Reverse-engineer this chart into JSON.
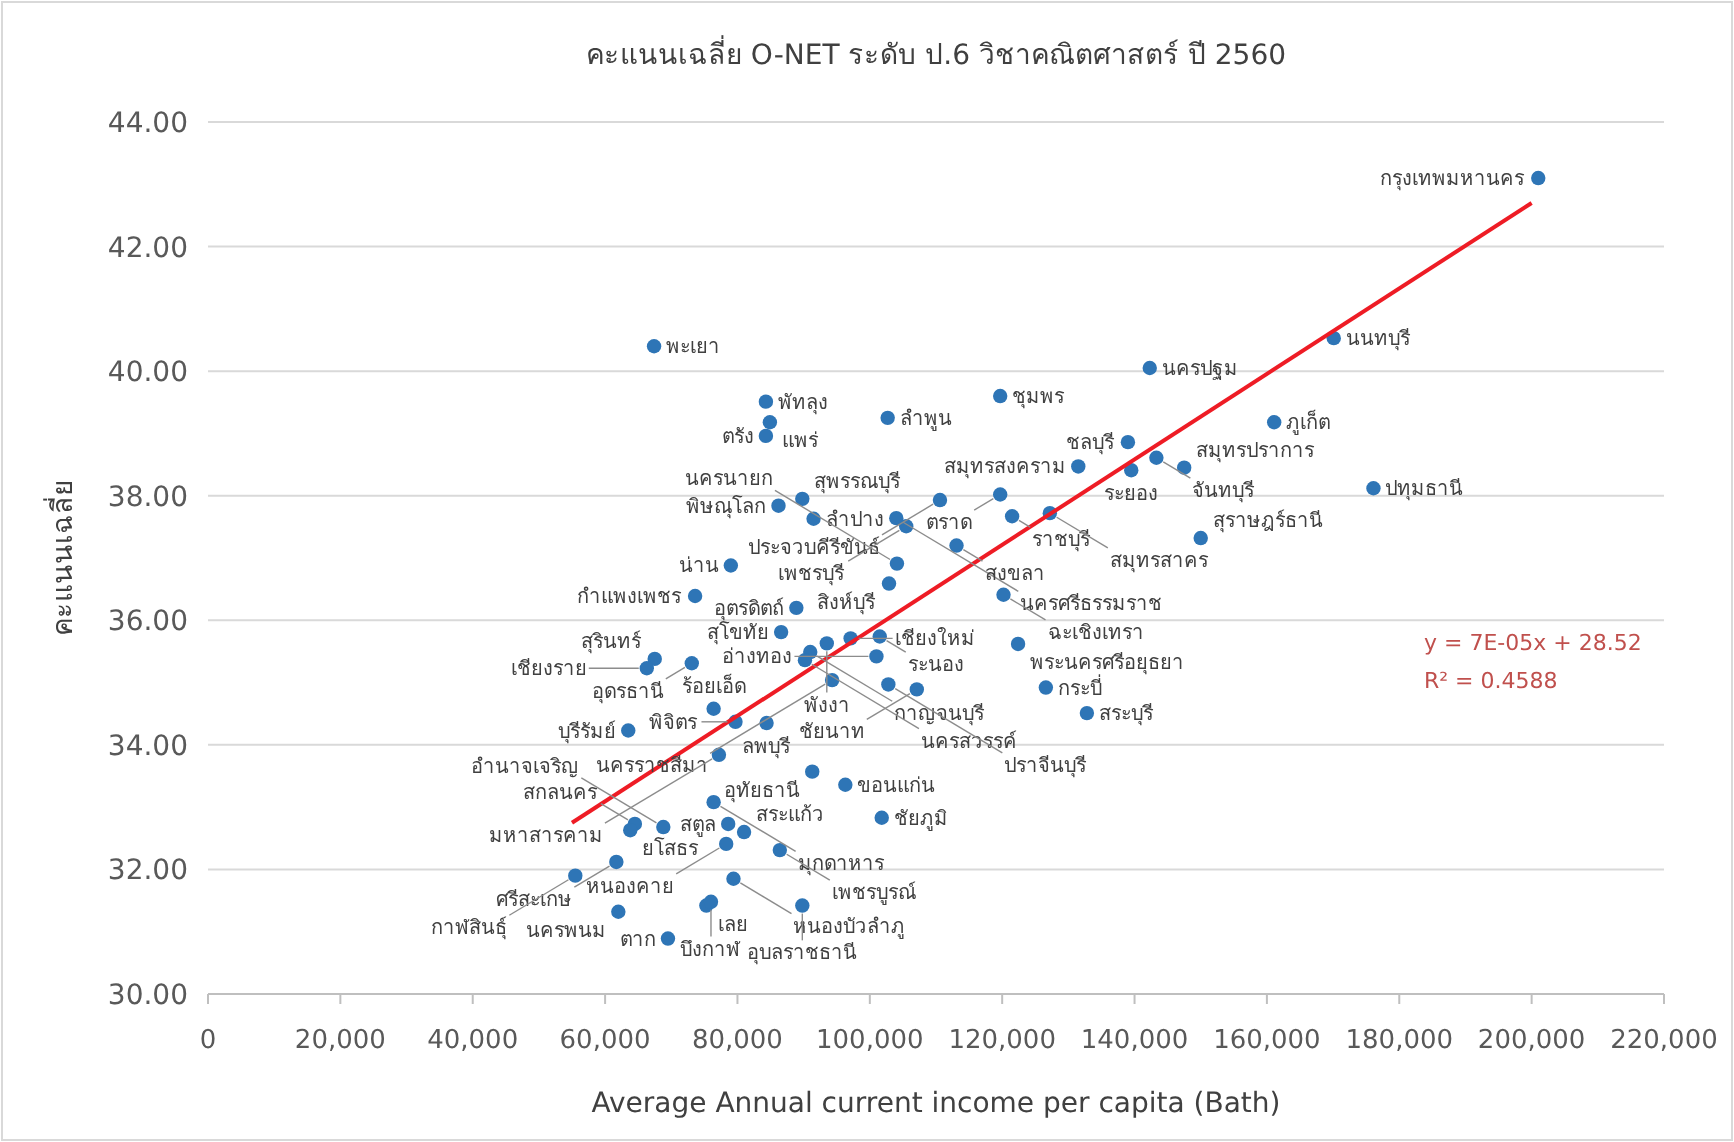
{
  "chart_data": {
    "type": "scatter",
    "title": "คะแนนเฉลี่ย O-NET ระดับ ป.6 วิชาคณิตศาสตร์ ปี 2560",
    "xlabel": "Average Annual current income per capita (Bath)",
    "ylabel": "คะแนนเฉลี่ย",
    "xlim": [
      0,
      220000
    ],
    "ylim": [
      30,
      44
    ],
    "xticks": [
      0,
      {
        "value": 20000,
        "label": "20,000"
      },
      {
        "value": 40000,
        "label": "40,000"
      },
      {
        "value": 60000,
        "label": "60,000"
      },
      {
        "value": 80000,
        "label": "80,000"
      },
      {
        "value": 100000,
        "label": "100,000"
      },
      {
        "value": 120000,
        "label": "120,000"
      },
      {
        "value": 140000,
        "label": "140,000"
      },
      {
        "value": 160000,
        "label": "160,000"
      },
      {
        "value": 180000,
        "label": "180,000"
      },
      {
        "value": 200000,
        "label": "200,000"
      },
      {
        "value": 220000,
        "label": "220,000"
      }
    ],
    "yticks": [
      {
        "value": 30,
        "label": "30.00"
      },
      {
        "value": 32,
        "label": "32.00"
      },
      {
        "value": 34,
        "label": "34.00"
      },
      {
        "value": 36,
        "label": "36.00"
      },
      {
        "value": 38,
        "label": "38.00"
      },
      {
        "value": 40,
        "label": "40.00"
      },
      {
        "value": 42,
        "label": "42.00"
      },
      {
        "value": 44,
        "label": "44.00"
      }
    ],
    "grid": "y",
    "series": [
      {
        "type": "scatter",
        "marker": "circle",
        "color": "#2e75b6",
        "x": [
          201000,
          170100,
          67400,
          142300,
          119700,
          84300,
          84900,
          102700,
          161100,
          84300,
          139000,
          143300,
          131500,
          139500,
          147500,
          89800,
          86200,
          91500,
          110600,
          119700,
          121500,
          127200,
          104000,
          176100,
          150000,
          105500,
          113100,
          104100,
          102900,
          79000,
          120200,
          73600,
          88900,
          86600,
          97100,
          91000,
          93500,
          101500,
          101000,
          90200,
          102800,
          107100,
          94300,
          67500,
          73100,
          66300,
          76400,
          79700,
          84400,
          63500,
          77200,
          91300,
          96300,
          122400,
          126600,
          132800,
          76400,
          64500,
          68800,
          63800,
          78600,
          81000,
          78300,
          86400,
          101800,
          61700,
          79400,
          55500,
          75300,
          76000,
          89800,
          62000,
          69500
        ],
        "values": [
          43.1,
          40.53,
          40.4,
          40.05,
          39.6,
          39.51,
          39.18,
          39.25,
          39.18,
          38.96,
          38.86,
          38.61,
          38.47,
          38.41,
          38.45,
          37.95,
          37.84,
          37.63,
          37.93,
          38.02,
          37.67,
          37.72,
          37.64,
          38.12,
          37.32,
          37.51,
          37.2,
          36.91,
          36.59,
          36.88,
          36.41,
          36.39,
          36.2,
          35.81,
          35.71,
          35.49,
          35.63,
          35.74,
          35.42,
          35.36,
          34.97,
          34.89,
          35.04,
          35.38,
          35.31,
          35.23,
          34.58,
          34.37,
          34.35,
          34.23,
          33.84,
          33.57,
          33.36,
          35.62,
          34.92,
          34.51,
          33.08,
          32.73,
          32.68,
          32.63,
          32.73,
          32.6,
          32.41,
          32.31,
          32.83,
          32.12,
          31.85,
          31.9,
          31.42,
          31.48,
          31.42,
          31.32,
          30.89
        ]
      },
      {
        "type": "line",
        "color": "#ee1c25",
        "x": [
          55000,
          200000
        ],
        "values": [
          32.75,
          42.7
        ]
      }
    ],
    "annotations": [
      {
        "text": "กรุงเทพมหานคร",
        "x": 201000,
        "y": 43.1
      },
      {
        "text": "นนทบุรี",
        "x": 170100,
        "y": 40.53
      },
      {
        "text": "พะเยา",
        "x": 67400,
        "y": 40.4
      },
      {
        "text": "นครปฐม",
        "x": 142300,
        "y": 40.05
      },
      {
        "text": "ชุมพร",
        "x": 119700,
        "y": 39.6
      },
      {
        "text": "พัทลุง",
        "x": 84300,
        "y": 39.51
      },
      {
        "text": "แพร่",
        "x": 84900,
        "y": 39.18
      },
      {
        "text": "ลำพูน",
        "x": 102700,
        "y": 39.25
      },
      {
        "text": "ภูเก็ต",
        "x": 161100,
        "y": 39.18
      },
      {
        "text": "ตรัง",
        "x": 84300,
        "y": 38.96
      },
      {
        "text": "ชลบุรี",
        "x": 139000,
        "y": 38.86
      },
      {
        "text": "จันทบุรี",
        "x": 143300,
        "y": 38.61
      },
      {
        "text": "สมุทรสงคราม",
        "x": 131500,
        "y": 38.47
      },
      {
        "text": "ระยอง",
        "x": 139500,
        "y": 38.41
      },
      {
        "text": "สมุทรปราการ",
        "x": 147500,
        "y": 38.45
      },
      {
        "text": "สุพรรณบุรี",
        "x": 89800,
        "y": 37.95
      },
      {
        "text": "พิษณุโลก",
        "x": 86200,
        "y": 37.84
      },
      {
        "text": "ลำปาง",
        "x": 91500,
        "y": 37.63
      },
      {
        "text": "ประจวบคีรีขันธ์",
        "x": 110600,
        "y": 37.93
      },
      {
        "text": "ตราด",
        "x": 119700,
        "y": 38.02
      },
      {
        "text": "ราชบุรี",
        "x": 121500,
        "y": 37.67
      },
      {
        "text": "สมุทรสาคร",
        "x": 127200,
        "y": 37.72
      },
      {
        "text": "นครศรีธรรมราช",
        "x": 104000,
        "y": 37.64
      },
      {
        "text": "ปทุมธานี",
        "x": 176100,
        "y": 38.12
      },
      {
        "text": "สุราษฎร์ธานี",
        "x": 150000,
        "y": 37.32
      },
      {
        "text": "เพชรบุรี",
        "x": 105500,
        "y": 37.51
      },
      {
        "text": "สงขลา",
        "x": 113100,
        "y": 37.2
      },
      {
        "text": "นครนายก",
        "x": 104100,
        "y": 36.91
      },
      {
        "text": "สิงห์บุรี",
        "x": 102900,
        "y": 36.59
      },
      {
        "text": "น่าน",
        "x": 79000,
        "y": 36.88
      },
      {
        "text": "ฉะเชิงเทรา",
        "x": 120200,
        "y": 36.41
      },
      {
        "text": "กำแพงเพชร",
        "x": 73600,
        "y": 36.39
      },
      {
        "text": "อุตรดิตถ์",
        "x": 88900,
        "y": 36.2
      },
      {
        "text": "สุโขทัย",
        "x": 86600,
        "y": 35.81
      },
      {
        "text": "เชียงใหม่",
        "x": 97100,
        "y": 35.71
      },
      {
        "text": "กาญจนบุรี",
        "x": 91000,
        "y": 35.49
      },
      {
        "text": "พังงา",
        "x": 93500,
        "y": 35.63
      },
      {
        "text": "ระนอง",
        "x": 101500,
        "y": 35.74
      },
      {
        "text": "อ่างทอง",
        "x": 101000,
        "y": 35.42
      },
      {
        "text": "นครสวรรค์",
        "x": 90200,
        "y": 35.36
      },
      {
        "text": "ปราจีนบุรี",
        "x": 102800,
        "y": 34.97
      },
      {
        "text": "ชัยนาท",
        "x": 107100,
        "y": 34.89
      },
      {
        "text": "นครราชสีมา",
        "x": 94300,
        "y": 35.04
      },
      {
        "text": "สุรินทร์",
        "x": 67500,
        "y": 35.38
      },
      {
        "text": "อุดรธานี",
        "x": 73100,
        "y": 35.31
      },
      {
        "text": "เชียงราย",
        "x": 66300,
        "y": 35.23
      },
      {
        "text": "ร้อยเอ็ด",
        "x": 76400,
        "y": 34.58
      },
      {
        "text": "พิจิตร",
        "x": 79700,
        "y": 34.37
      },
      {
        "text": "ลพบุรี",
        "x": 84400,
        "y": 34.35
      },
      {
        "text": "บุรีรัมย์",
        "x": 63500,
        "y": 34.23
      },
      {
        "text": "มหาสารคาม",
        "x": 77200,
        "y": 33.84
      },
      {
        "text": "อุทัยธานี",
        "x": 91300,
        "y": 33.57
      },
      {
        "text": "ขอนแก่น",
        "x": 96300,
        "y": 33.36
      },
      {
        "text": "พระนครศรีอยุธยา",
        "x": 122400,
        "y": 35.62
      },
      {
        "text": "กระบี่",
        "x": 126600,
        "y": 34.92
      },
      {
        "text": "สระบุรี",
        "x": 132800,
        "y": 34.51
      },
      {
        "text": "มุกดาหาร",
        "x": 76400,
        "y": 33.08
      },
      {
        "text": "สกลนคร",
        "x": 64500,
        "y": 32.73
      },
      {
        "text": "อำนาจเจริญ",
        "x": 68800,
        "y": 32.68
      },
      {
        "text": "ยโสธร",
        "x": 63800,
        "y": 32.63
      },
      {
        "text": "สตูล",
        "x": 78600,
        "y": 32.73
      },
      {
        "text": "สระแก้ว",
        "x": 81000,
        "y": 32.6
      },
      {
        "text": "หนองคาย",
        "x": 78300,
        "y": 32.41
      },
      {
        "text": "เพชรบูรณ์",
        "x": 86400,
        "y": 32.31
      },
      {
        "text": "ชัยภูมิ",
        "x": 101800,
        "y": 32.83
      },
      {
        "text": "ศรีสะเกษ",
        "x": 61700,
        "y": 32.12
      },
      {
        "text": "หนองบัวลำภู",
        "x": 79400,
        "y": 31.85
      },
      {
        "text": "กาฬสินธุ์",
        "x": 55500,
        "y": 31.9
      },
      {
        "text": "เลย",
        "x": 75300,
        "y": 31.42
      },
      {
        "text": "บึงกาฬ",
        "x": 76000,
        "y": 31.48
      },
      {
        "text": "อุบลราชธานี",
        "x": 89800,
        "y": 31.42
      },
      {
        "text": "นครพนม",
        "x": 62000,
        "y": 31.32
      },
      {
        "text": "ตาก",
        "x": 69500,
        "y": 30.89
      },
      "y = 7E-05x + 28.52",
      "R² = 0.4588"
    ]
  }
}
